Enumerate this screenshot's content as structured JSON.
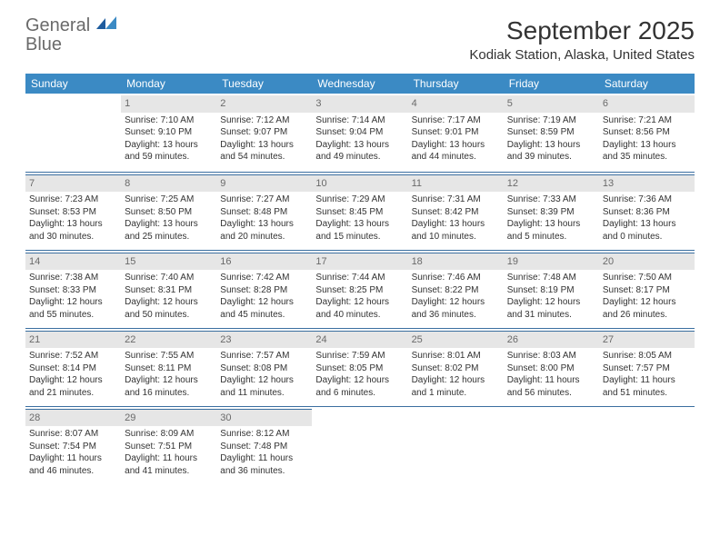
{
  "logo": {
    "text1": "General",
    "text2": "Blue",
    "color_gray": "#6a6a6a",
    "color_blue": "#2a7fc4"
  },
  "header": {
    "month": "September 2025",
    "location": "Kodiak Station, Alaska, United States"
  },
  "theme": {
    "header_bg": "#3b8ac4",
    "header_text": "#ffffff",
    "daynum_bg": "#e6e6e6",
    "daynum_text": "#6a6a6a",
    "divider": "#3b6fa0",
    "body_text": "#333333",
    "page_bg": "#ffffff"
  },
  "weekdays": [
    "Sunday",
    "Monday",
    "Tuesday",
    "Wednesday",
    "Thursday",
    "Friday",
    "Saturday"
  ],
  "weeks": [
    [
      null,
      {
        "n": "1",
        "sunrise": "Sunrise: 7:10 AM",
        "sunset": "Sunset: 9:10 PM",
        "day1": "Daylight: 13 hours",
        "day2": "and 59 minutes."
      },
      {
        "n": "2",
        "sunrise": "Sunrise: 7:12 AM",
        "sunset": "Sunset: 9:07 PM",
        "day1": "Daylight: 13 hours",
        "day2": "and 54 minutes."
      },
      {
        "n": "3",
        "sunrise": "Sunrise: 7:14 AM",
        "sunset": "Sunset: 9:04 PM",
        "day1": "Daylight: 13 hours",
        "day2": "and 49 minutes."
      },
      {
        "n": "4",
        "sunrise": "Sunrise: 7:17 AM",
        "sunset": "Sunset: 9:01 PM",
        "day1": "Daylight: 13 hours",
        "day2": "and 44 minutes."
      },
      {
        "n": "5",
        "sunrise": "Sunrise: 7:19 AM",
        "sunset": "Sunset: 8:59 PM",
        "day1": "Daylight: 13 hours",
        "day2": "and 39 minutes."
      },
      {
        "n": "6",
        "sunrise": "Sunrise: 7:21 AM",
        "sunset": "Sunset: 8:56 PM",
        "day1": "Daylight: 13 hours",
        "day2": "and 35 minutes."
      }
    ],
    [
      {
        "n": "7",
        "sunrise": "Sunrise: 7:23 AM",
        "sunset": "Sunset: 8:53 PM",
        "day1": "Daylight: 13 hours",
        "day2": "and 30 minutes."
      },
      {
        "n": "8",
        "sunrise": "Sunrise: 7:25 AM",
        "sunset": "Sunset: 8:50 PM",
        "day1": "Daylight: 13 hours",
        "day2": "and 25 minutes."
      },
      {
        "n": "9",
        "sunrise": "Sunrise: 7:27 AM",
        "sunset": "Sunset: 8:48 PM",
        "day1": "Daylight: 13 hours",
        "day2": "and 20 minutes."
      },
      {
        "n": "10",
        "sunrise": "Sunrise: 7:29 AM",
        "sunset": "Sunset: 8:45 PM",
        "day1": "Daylight: 13 hours",
        "day2": "and 15 minutes."
      },
      {
        "n": "11",
        "sunrise": "Sunrise: 7:31 AM",
        "sunset": "Sunset: 8:42 PM",
        "day1": "Daylight: 13 hours",
        "day2": "and 10 minutes."
      },
      {
        "n": "12",
        "sunrise": "Sunrise: 7:33 AM",
        "sunset": "Sunset: 8:39 PM",
        "day1": "Daylight: 13 hours",
        "day2": "and 5 minutes."
      },
      {
        "n": "13",
        "sunrise": "Sunrise: 7:36 AM",
        "sunset": "Sunset: 8:36 PM",
        "day1": "Daylight: 13 hours",
        "day2": "and 0 minutes."
      }
    ],
    [
      {
        "n": "14",
        "sunrise": "Sunrise: 7:38 AM",
        "sunset": "Sunset: 8:33 PM",
        "day1": "Daylight: 12 hours",
        "day2": "and 55 minutes."
      },
      {
        "n": "15",
        "sunrise": "Sunrise: 7:40 AM",
        "sunset": "Sunset: 8:31 PM",
        "day1": "Daylight: 12 hours",
        "day2": "and 50 minutes."
      },
      {
        "n": "16",
        "sunrise": "Sunrise: 7:42 AM",
        "sunset": "Sunset: 8:28 PM",
        "day1": "Daylight: 12 hours",
        "day2": "and 45 minutes."
      },
      {
        "n": "17",
        "sunrise": "Sunrise: 7:44 AM",
        "sunset": "Sunset: 8:25 PM",
        "day1": "Daylight: 12 hours",
        "day2": "and 40 minutes."
      },
      {
        "n": "18",
        "sunrise": "Sunrise: 7:46 AM",
        "sunset": "Sunset: 8:22 PM",
        "day1": "Daylight: 12 hours",
        "day2": "and 36 minutes."
      },
      {
        "n": "19",
        "sunrise": "Sunrise: 7:48 AM",
        "sunset": "Sunset: 8:19 PM",
        "day1": "Daylight: 12 hours",
        "day2": "and 31 minutes."
      },
      {
        "n": "20",
        "sunrise": "Sunrise: 7:50 AM",
        "sunset": "Sunset: 8:17 PM",
        "day1": "Daylight: 12 hours",
        "day2": "and 26 minutes."
      }
    ],
    [
      {
        "n": "21",
        "sunrise": "Sunrise: 7:52 AM",
        "sunset": "Sunset: 8:14 PM",
        "day1": "Daylight: 12 hours",
        "day2": "and 21 minutes."
      },
      {
        "n": "22",
        "sunrise": "Sunrise: 7:55 AM",
        "sunset": "Sunset: 8:11 PM",
        "day1": "Daylight: 12 hours",
        "day2": "and 16 minutes."
      },
      {
        "n": "23",
        "sunrise": "Sunrise: 7:57 AM",
        "sunset": "Sunset: 8:08 PM",
        "day1": "Daylight: 12 hours",
        "day2": "and 11 minutes."
      },
      {
        "n": "24",
        "sunrise": "Sunrise: 7:59 AM",
        "sunset": "Sunset: 8:05 PM",
        "day1": "Daylight: 12 hours",
        "day2": "and 6 minutes."
      },
      {
        "n": "25",
        "sunrise": "Sunrise: 8:01 AM",
        "sunset": "Sunset: 8:02 PM",
        "day1": "Daylight: 12 hours",
        "day2": "and 1 minute."
      },
      {
        "n": "26",
        "sunrise": "Sunrise: 8:03 AM",
        "sunset": "Sunset: 8:00 PM",
        "day1": "Daylight: 11 hours",
        "day2": "and 56 minutes."
      },
      {
        "n": "27",
        "sunrise": "Sunrise: 8:05 AM",
        "sunset": "Sunset: 7:57 PM",
        "day1": "Daylight: 11 hours",
        "day2": "and 51 minutes."
      }
    ],
    [
      {
        "n": "28",
        "sunrise": "Sunrise: 8:07 AM",
        "sunset": "Sunset: 7:54 PM",
        "day1": "Daylight: 11 hours",
        "day2": "and 46 minutes."
      },
      {
        "n": "29",
        "sunrise": "Sunrise: 8:09 AM",
        "sunset": "Sunset: 7:51 PM",
        "day1": "Daylight: 11 hours",
        "day2": "and 41 minutes."
      },
      {
        "n": "30",
        "sunrise": "Sunrise: 8:12 AM",
        "sunset": "Sunset: 7:48 PM",
        "day1": "Daylight: 11 hours",
        "day2": "and 36 minutes."
      },
      null,
      null,
      null,
      null
    ]
  ]
}
